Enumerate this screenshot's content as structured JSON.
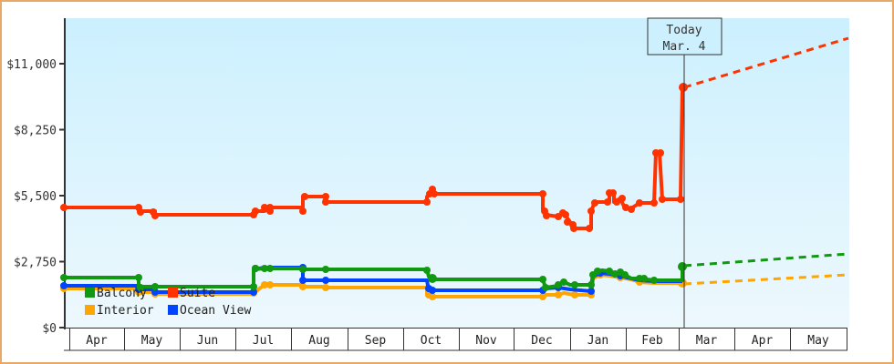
{
  "chart_data": {
    "type": "line",
    "title": "",
    "xlabel": "",
    "ylabel": "",
    "ylim": [
      0,
      12500
    ],
    "yticks": [
      {
        "value": 0,
        "label": "$0"
      },
      {
        "value": 2750,
        "label": "$2,750"
      },
      {
        "value": 5500,
        "label": "$5,500"
      },
      {
        "value": 8250,
        "label": "$8,250"
      },
      {
        "value": 11000,
        "label": "$11,000"
      }
    ],
    "x_months": [
      "Apr",
      "May",
      "Jun",
      "Jul",
      "Aug",
      "Sep",
      "Oct",
      "Nov",
      "Dec",
      "Jan",
      "Feb",
      "Mar",
      "Apr",
      "May"
    ],
    "today_marker": {
      "line1": "Today",
      "line2": "Mar. 4"
    },
    "legend": [
      {
        "name": "Balcony",
        "color": "#119911"
      },
      {
        "name": "Suite",
        "color": "#ff3300"
      },
      {
        "name": "Interior",
        "color": "#ffa500"
      },
      {
        "name": "Ocean View",
        "color": "#0044ff"
      }
    ],
    "series": [
      {
        "name": "Suite",
        "color": "#ff3300",
        "approx_values": {
          "Apr": 5000,
          "May": 4700,
          "Jul": 4850,
          "Aug": 5230,
          "Oct": 5580,
          "Dec": 4700,
          "Jan": 4150,
          "Jan_late": 5300,
          "Feb": 5330,
          "Feb_peak": 7300,
          "Mar_today": 10000
        },
        "projection_end": 12050
      },
      {
        "name": "Balcony",
        "color": "#119911",
        "approx_values": {
          "Apr": 2100,
          "May": 1700,
          "Jul": 2450,
          "Aug": 2380,
          "Oct": 1980,
          "Dec": 1650,
          "Jan": 2200,
          "Feb": 1950,
          "Mar_today": 2550
        },
        "projection_end": 3050
      },
      {
        "name": "Ocean View",
        "color": "#0044ff",
        "approx_values": {
          "Apr": 1760,
          "May": 1500,
          "Jul": 2450,
          "Aug": 1980,
          "Oct": 1560,
          "Dec": 1520,
          "Jan": 2100,
          "Feb": 1880
        }
      },
      {
        "name": "Interior",
        "color": "#ffa500",
        "approx_values": {
          "Apr": 1650,
          "May": 1430,
          "Jul": 1740,
          "Aug": 1700,
          "Oct": 1280,
          "Dec": 1260,
          "Jan": 2050,
          "Feb": 1800,
          "Mar_today": 1780
        },
        "projection_end": 2200
      }
    ]
  }
}
